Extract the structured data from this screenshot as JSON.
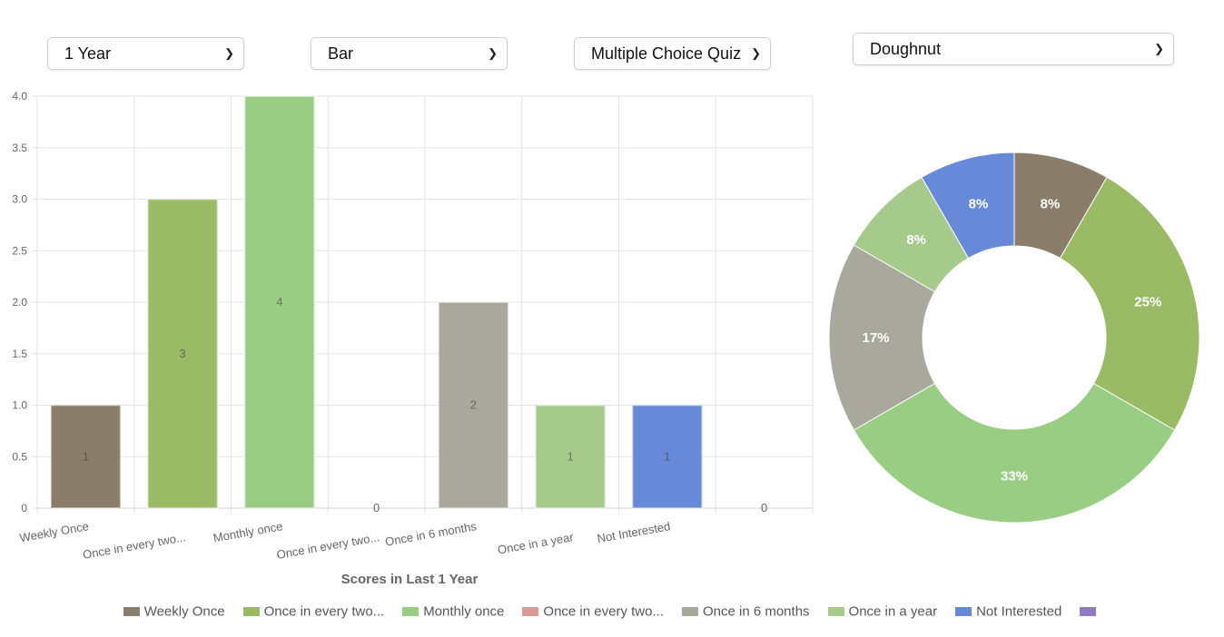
{
  "controls": {
    "period": "1 Year",
    "chart_type": "Bar",
    "question": "Multiple Choice Quiz",
    "pie_type": "Doughnut"
  },
  "chart_data": [
    {
      "type": "bar",
      "title": "",
      "xlabel": "Scores in Last 1 Year",
      "ylabel": "",
      "ylim": [
        0,
        4
      ],
      "yticks": [
        "0",
        "0.5",
        "1.0",
        "1.5",
        "2.0",
        "2.5",
        "3.0",
        "3.5",
        "4.0"
      ],
      "categories": [
        "Weekly Once",
        "Once in every two...",
        "Monthly once",
        "Once in every two...",
        "Once in 6 months",
        "Once in a year",
        "Not Interested",
        ""
      ],
      "values": [
        1,
        3,
        4,
        0,
        2,
        1,
        1,
        0
      ],
      "value_labels": [
        "1",
        "3",
        "4",
        "0",
        "2",
        "1",
        "1",
        "0"
      ],
      "colors": [
        "#8a7d6a",
        "#9aba66",
        "#9acd84",
        "#d99c94",
        "#a8a99c",
        "#a6c98c",
        "#6789d8",
        "#8f7bc0"
      ],
      "grid": true
    },
    {
      "type": "pie",
      "variant": "doughnut",
      "slices": [
        {
          "name": "Weekly Once",
          "value": 1,
          "label": "8%",
          "color": "#8a7d6a"
        },
        {
          "name": "Once in every two...",
          "value": 3,
          "label": "25%",
          "color": "#9aba66"
        },
        {
          "name": "Monthly once",
          "value": 4,
          "label": "33%",
          "color": "#9acd84"
        },
        {
          "name": "Once in 6 months",
          "value": 2,
          "label": "17%",
          "color": "#a8a99c"
        },
        {
          "name": "Once in a year",
          "value": 1,
          "label": "8%",
          "color": "#a6c98c"
        },
        {
          "name": "Not Interested",
          "value": 1,
          "label": "8%",
          "color": "#6789d8"
        }
      ]
    }
  ],
  "legend": [
    {
      "label": "Weekly Once",
      "color": "#8a7d6a"
    },
    {
      "label": "Once in every two...",
      "color": "#9aba66"
    },
    {
      "label": "Monthly once",
      "color": "#9acd84"
    },
    {
      "label": "Once in every two...",
      "color": "#d99c94"
    },
    {
      "label": "Once in 6 months",
      "color": "#a8a99c"
    },
    {
      "label": "Once in a year",
      "color": "#a6c98c"
    },
    {
      "label": "Not Interested",
      "color": "#6789d8"
    },
    {
      "label": "",
      "color": "#8f7bc0"
    }
  ]
}
